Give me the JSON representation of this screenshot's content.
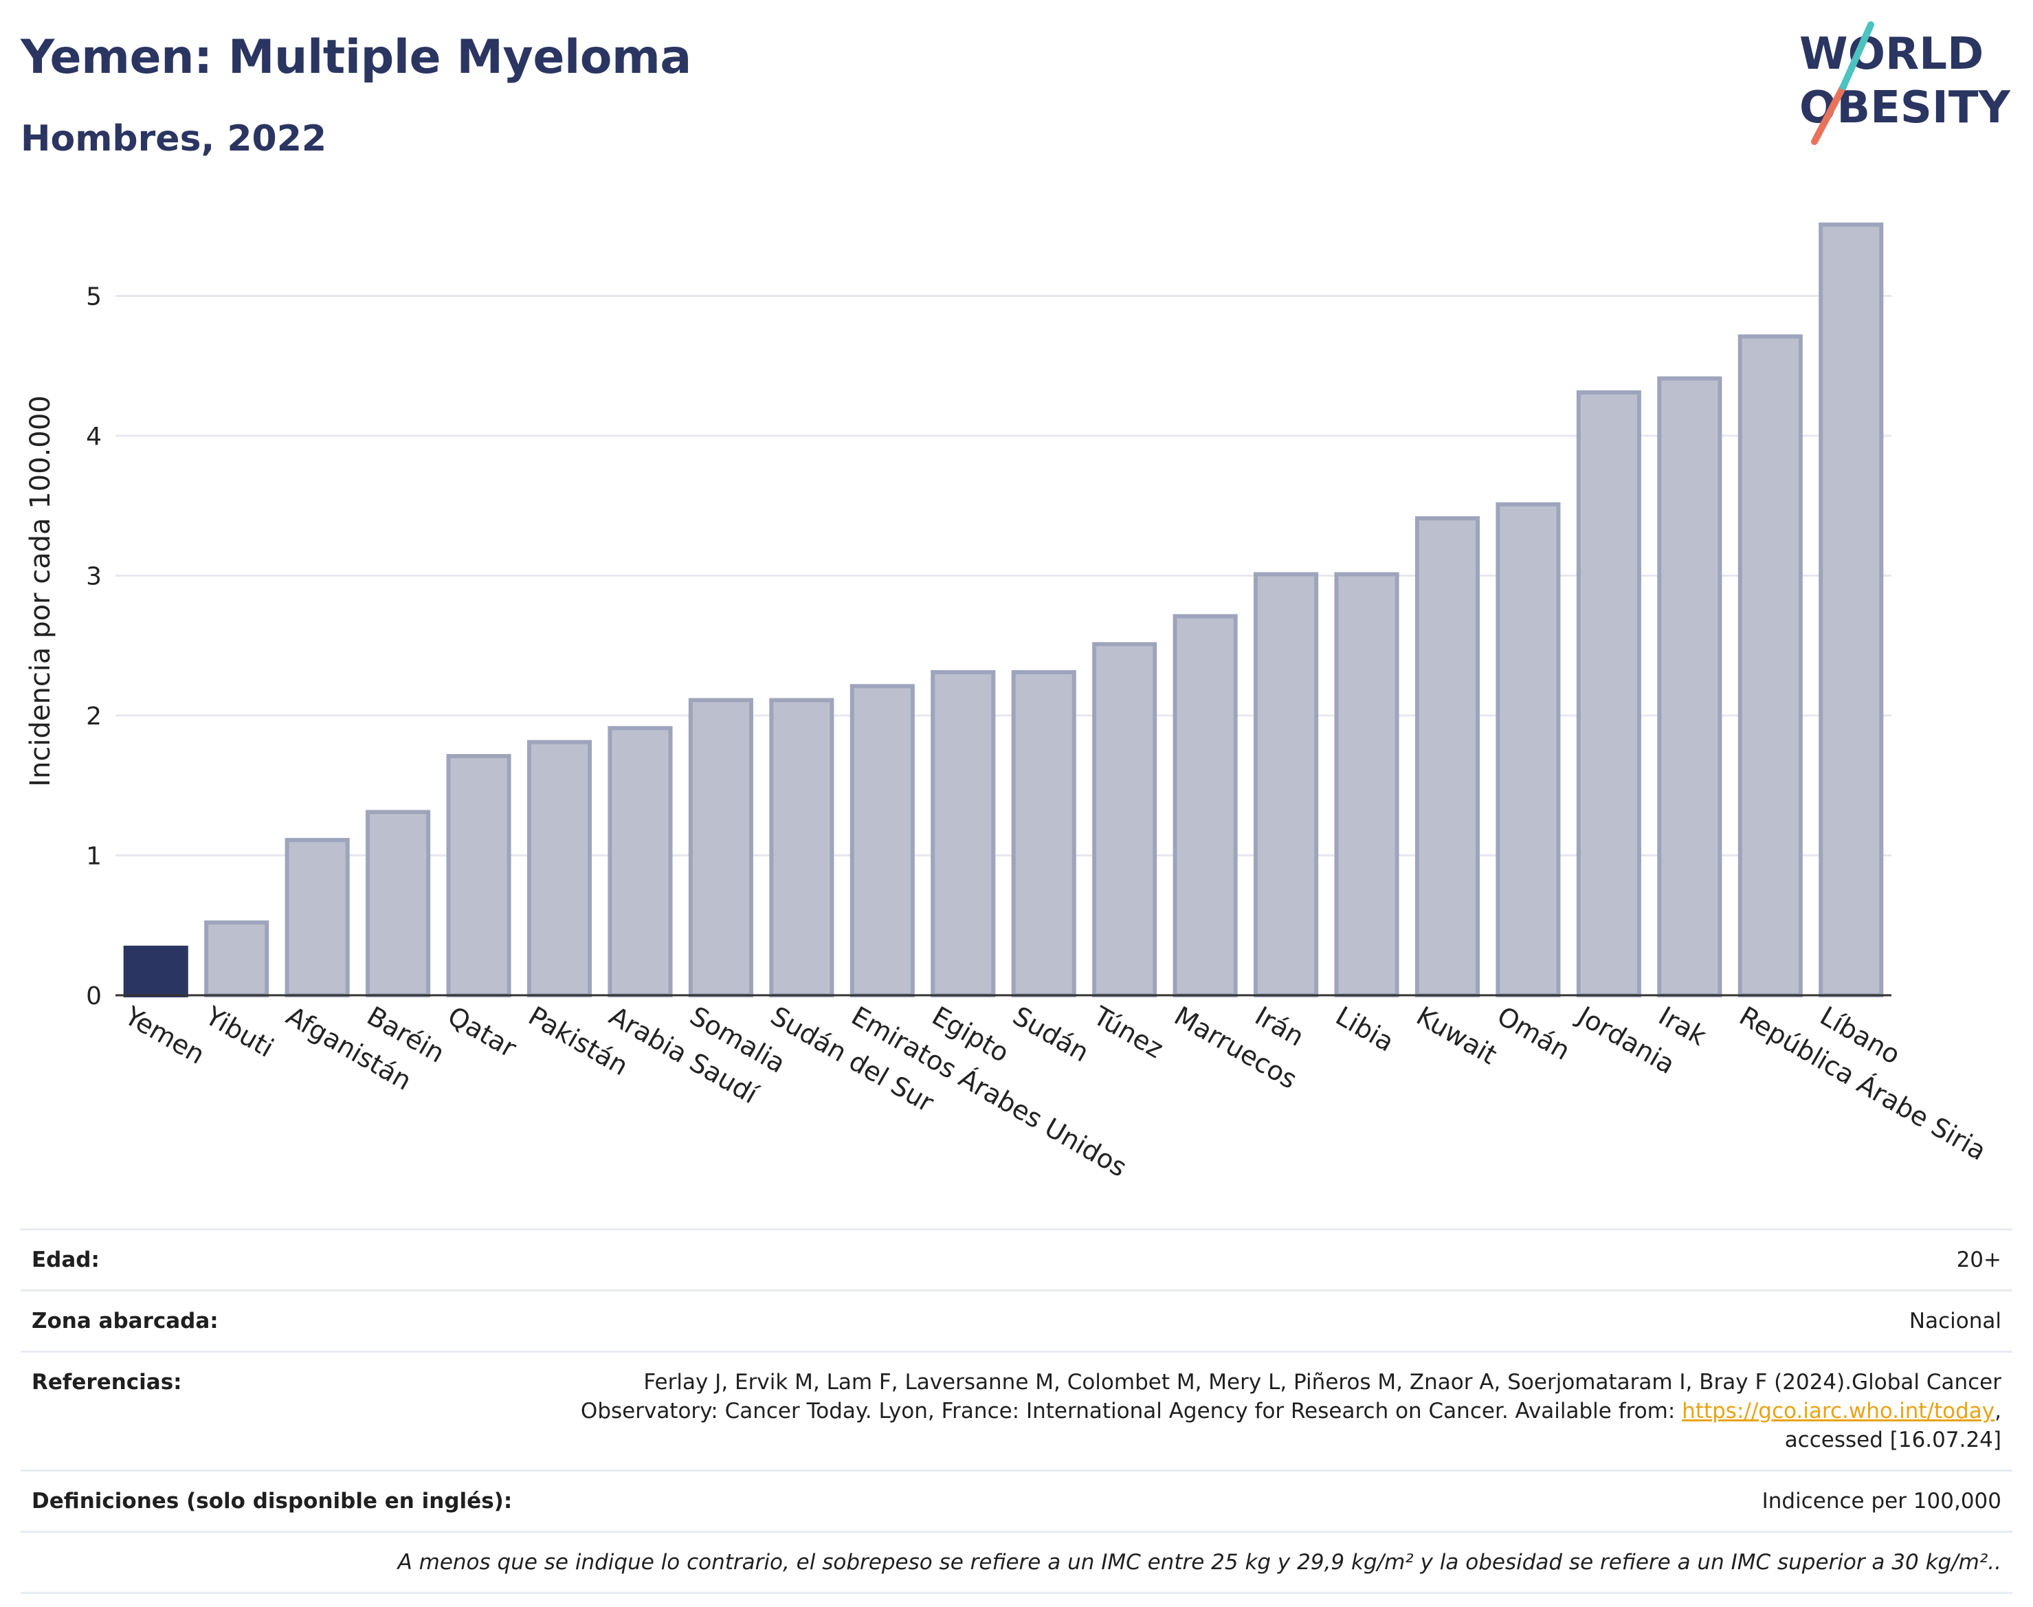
{
  "header": {
    "title": "Yemen: Multiple Myeloma",
    "subtitle": "Hombres, 2022"
  },
  "logo": {
    "line1": "WORLD",
    "line2": "OBESITY"
  },
  "chart_data": {
    "type": "bar",
    "ylabel": "Incidencia por cada 100.000",
    "xlabel": "",
    "ylim": [
      0,
      5.6
    ],
    "yticks": [
      0,
      1,
      2,
      3,
      4,
      5
    ],
    "grid": true,
    "highlight": "Yemen",
    "highlight_color": "#2b3561",
    "bar_color": "#bcc0ce",
    "bar_edge_color": "#9ea4bb",
    "categories": [
      "Yemen",
      "Yibuti",
      "Afganistán",
      "Baréin",
      "Qatar",
      "Pakistán",
      "Arabia Saudí",
      "Somalia",
      "Sudán del Sur",
      "Emiratos Árabes Unidos",
      "Egipto",
      "Sudán",
      "Túnez",
      "Marruecos",
      "Irán",
      "Libia",
      "Kuwait",
      "Omán",
      "Jordania",
      "Irak",
      "República Árabe Siria",
      "Líbano"
    ],
    "values": [
      0.34,
      0.52,
      1.11,
      1.31,
      1.71,
      1.81,
      1.91,
      2.11,
      2.11,
      2.21,
      2.31,
      2.31,
      2.51,
      2.71,
      3.01,
      3.01,
      3.41,
      3.51,
      4.31,
      4.41,
      4.71,
      5.51
    ]
  },
  "info": {
    "age_label": "Edad:",
    "age_value": "20+",
    "area_label": "Zona abarcada:",
    "area_value": "Nacional",
    "refs_label": "Referencias:",
    "refs_text_1": "Ferlay J, Ervik M, Lam F, Laversanne M, Colombet M, Mery L, Piñeros M, Znaor A, Soerjomataram I, Bray F (2024).Global Cancer",
    "refs_text_2": "Observatory: Cancer Today. Lyon, France: International Agency for Research on Cancer. Available from: ",
    "refs_link": "https://gco.iarc.who.int/today",
    "refs_text_3": ",",
    "refs_text_4": "accessed [16.07.24]",
    "defs_label": "Definiciones (solo disponible en inglés):",
    "defs_value": "Indicence per 100,000",
    "note": "A menos que se indique lo contrario, el sobrepeso se refiere a un IMC entre 25 kg y 29,9 kg/m² y la obesidad se refiere a un IMC superior a 30 kg/m².."
  }
}
